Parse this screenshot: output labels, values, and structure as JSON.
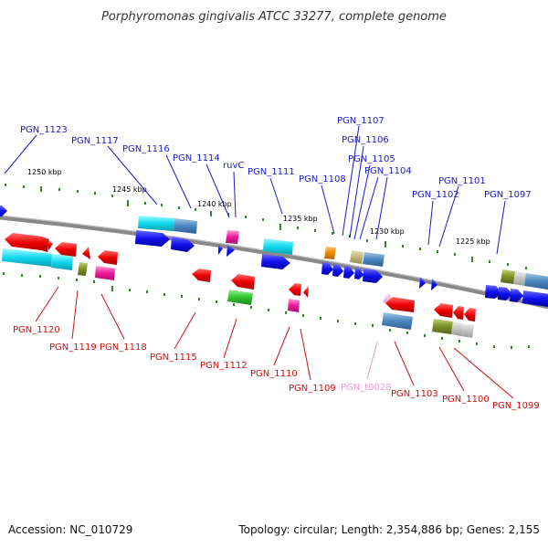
{
  "title": "Porphyromonas gingivalis ATCC 33277, complete genome",
  "footer": {
    "accession": "Accession: NC_010729",
    "topology": "Topology: circular; Length: 2,354,886 bp; Genes: 2,155"
  },
  "colors": {
    "plus_label": "#1a1acc",
    "minus_label": "#cc1111",
    "rna_label": "#ee99cc",
    "backbone": "#888888",
    "tick": "#2a8a2a"
  },
  "scale_labels": [
    "1250 kbp",
    "1245 kbp",
    "1240 kbp",
    "1235 kbp",
    "1230 kbp",
    "1225 kbp"
  ],
  "genes_plus": [
    "PGN_1123",
    "PGN_1117",
    "PGN_1116",
    "PGN_1114",
    "ruvC",
    "PGN_1111",
    "PGN_1108",
    "PGN_1107",
    "PGN_1106",
    "PGN_1105",
    "PGN_1104",
    "PGN_1102",
    "PGN_1101",
    "PGN_1097"
  ],
  "genes_minus": [
    "PGN_1120",
    "PGN_1119",
    "PGN_1118",
    "PGN_1115",
    "PGN_1112",
    "PGN_1110",
    "PGN_1109",
    "PGN_t0028",
    "PGN_1103",
    "PGN_1100",
    "PGN_1099"
  ]
}
